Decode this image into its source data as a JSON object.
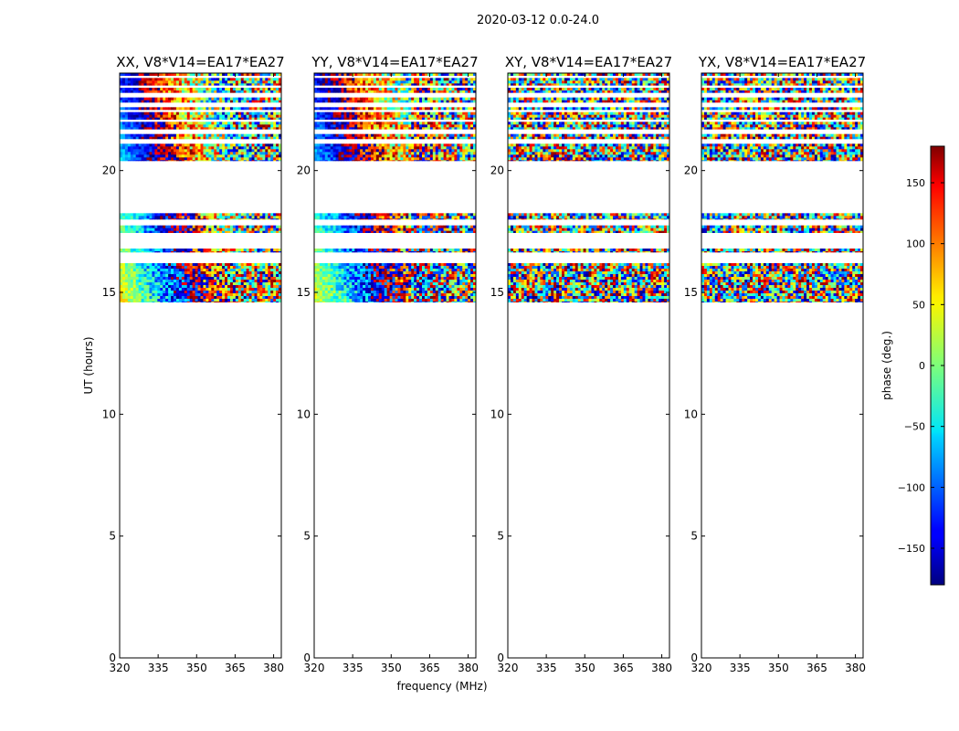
{
  "suptitle": "2020-03-12 0.0-24.0",
  "chart_data": {
    "type": "heatmap",
    "title": "2020-03-12 0.0-24.0",
    "xlabel": "frequency (MHz)",
    "ylabel": "UT (hours)",
    "xlim": [
      320,
      383
    ],
    "ylim": [
      0,
      24
    ],
    "xticks": [
      320,
      335,
      350,
      365,
      380
    ],
    "yticks": [
      0,
      5,
      10,
      15,
      20
    ],
    "colorbar": {
      "label": "phase (deg.)",
      "range": [
        -180,
        180
      ],
      "ticks": [
        150,
        100,
        50,
        0,
        -50,
        -100,
        -150
      ],
      "tick_labels": [
        "150",
        "100",
        "50",
        "0",
        "−50",
        "−100",
        "−150"
      ],
      "colormap": "jet"
    },
    "time_coverage_hours": [
      [
        20.4,
        21.1
      ],
      [
        21.3,
        21.5
      ],
      [
        21.7,
        22.0
      ],
      [
        22.1,
        22.4
      ],
      [
        22.5,
        22.6
      ],
      [
        22.8,
        23.0
      ],
      [
        23.2,
        23.4
      ],
      [
        23.5,
        23.8
      ],
      [
        23.9,
        24.0
      ],
      [
        18.0,
        18.25
      ],
      [
        17.45,
        17.75
      ],
      [
        16.65,
        16.8
      ],
      [
        14.6,
        16.2
      ]
    ],
    "panels": [
      {
        "title": "XX, V8*V14=EA17*EA27",
        "pattern": "phase_slope_smooth"
      },
      {
        "title": "YY, V8*V14=EA17*EA27",
        "pattern": "phase_slope_blocky"
      },
      {
        "title": "XY, V8*V14=EA17*EA27",
        "pattern": "noise"
      },
      {
        "title": "YX, V8*V14=EA17*EA27",
        "pattern": "noise"
      }
    ]
  }
}
